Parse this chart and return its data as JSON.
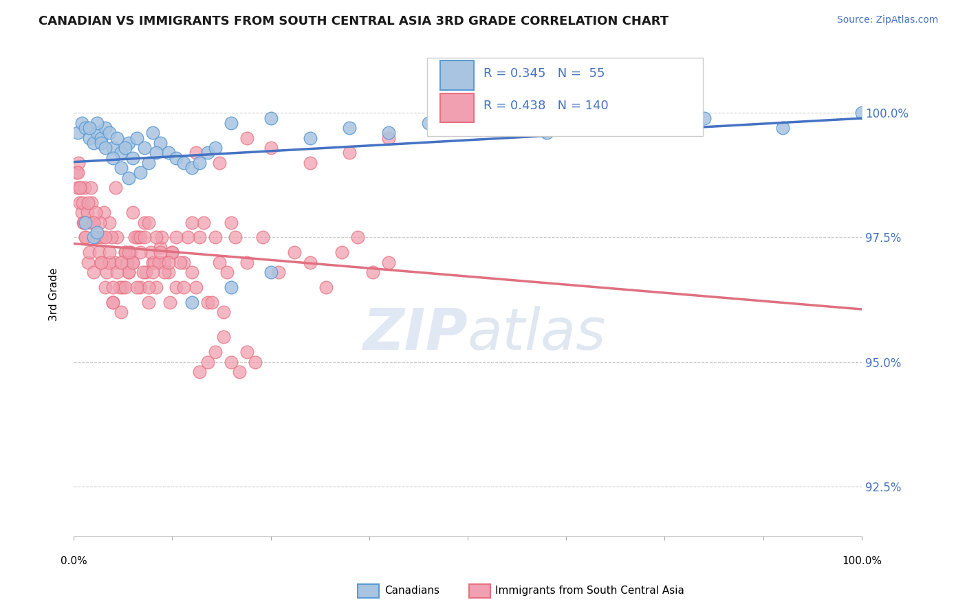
{
  "title": "CANADIAN VS IMMIGRANTS FROM SOUTH CENTRAL ASIA 3RD GRADE CORRELATION CHART",
  "source_text": "Source: ZipAtlas.com",
  "ylabel": "3rd Grade",
  "y_tick_labels": [
    "92.5%",
    "95.0%",
    "97.5%",
    "100.0%"
  ],
  "y_tick_values": [
    92.5,
    95.0,
    97.5,
    100.0
  ],
  "x_range": [
    0,
    100
  ],
  "y_range": [
    91.5,
    101.2
  ],
  "blue_color": "#5b9bd5",
  "pink_color": "#e87080",
  "blue_scatter_color": "#a8c4e0",
  "pink_scatter_color": "#f0a0b0",
  "blue_line_color": "#4472c4",
  "pink_line_color": "#e07080",
  "canadians_x": [
    0.5,
    1.0,
    1.5,
    2.0,
    2.5,
    3.0,
    3.5,
    4.0,
    5.0,
    6.0,
    7.0,
    8.0,
    9.0,
    10.0,
    11.0,
    12.0,
    13.0,
    14.0,
    15.0,
    16.0,
    17.0,
    18.0,
    3.0,
    4.5,
    5.5,
    6.5,
    7.5,
    8.5,
    9.5,
    10.5,
    2.0,
    3.5,
    4.0,
    5.0,
    6.0,
    7.0,
    1.5,
    2.5,
    3.0,
    20.0,
    25.0,
    30.0,
    35.0,
    40.0,
    45.0,
    50.0,
    55.0,
    60.0,
    70.0,
    80.0,
    90.0,
    100.0,
    15.0,
    20.0,
    25.0
  ],
  "canadians_y": [
    99.6,
    99.8,
    99.7,
    99.5,
    99.4,
    99.6,
    99.5,
    99.7,
    99.3,
    99.2,
    99.4,
    99.5,
    99.3,
    99.6,
    99.4,
    99.2,
    99.1,
    99.0,
    98.9,
    99.0,
    99.2,
    99.3,
    99.8,
    99.6,
    99.5,
    99.3,
    99.1,
    98.8,
    99.0,
    99.2,
    99.7,
    99.4,
    99.3,
    99.1,
    98.9,
    98.7,
    97.8,
    97.5,
    97.6,
    99.8,
    99.9,
    99.5,
    99.7,
    99.6,
    99.8,
    99.9,
    99.7,
    99.6,
    99.8,
    99.9,
    99.7,
    100.0,
    96.2,
    96.5,
    96.8
  ],
  "immigrants_x": [
    0.5,
    0.8,
    1.0,
    1.2,
    1.5,
    1.8,
    2.0,
    2.5,
    3.0,
    3.5,
    4.0,
    4.5,
    5.0,
    5.5,
    6.0,
    6.5,
    7.0,
    7.5,
    8.0,
    8.5,
    9.0,
    9.5,
    10.0,
    10.5,
    11.0,
    11.5,
    12.0,
    12.5,
    13.0,
    14.0,
    15.0,
    16.0,
    17.0,
    18.0,
    19.0,
    20.0,
    0.3,
    0.6,
    0.9,
    1.1,
    1.4,
    1.7,
    2.2,
    2.7,
    3.2,
    4.2,
    5.2,
    6.2,
    7.2,
    8.2,
    9.2,
    10.2,
    11.2,
    12.2,
    3.8,
    4.8,
    5.8,
    6.8,
    7.8,
    8.8,
    9.8,
    10.8,
    2.3,
    3.3,
    5.3,
    15.5,
    18.5,
    22.0,
    25.0,
    30.0,
    35.0,
    40.0,
    7.5,
    8.5,
    9.5,
    6.5,
    7.0,
    5.0,
    4.5,
    3.5,
    2.8,
    2.2,
    1.8,
    1.3,
    0.8,
    0.5,
    1.5,
    2.5,
    3.5,
    4.5,
    5.5,
    6.5,
    7.5,
    8.5,
    9.5,
    10.5,
    11.5,
    12.5,
    13.5,
    14.5,
    15.5,
    16.5,
    17.5,
    18.5,
    19.5,
    20.5,
    22.0,
    24.0,
    26.0,
    28.0,
    30.0,
    32.0,
    34.0,
    36.0,
    38.0,
    40.0,
    4.0,
    5.0,
    6.0,
    7.0,
    8.0,
    9.0,
    10.0,
    11.0,
    12.0,
    13.0,
    14.0,
    15.0,
    16.0,
    17.0,
    18.0,
    19.0,
    20.0,
    21.0,
    22.0,
    23.0
  ],
  "immigrants_y": [
    98.5,
    98.2,
    98.0,
    97.8,
    97.5,
    97.0,
    97.2,
    96.8,
    97.5,
    97.0,
    96.5,
    97.8,
    96.2,
    97.5,
    96.0,
    97.2,
    96.8,
    97.0,
    97.5,
    96.5,
    97.8,
    96.2,
    97.0,
    96.5,
    97.3,
    97.0,
    96.8,
    97.2,
    96.5,
    97.0,
    96.8,
    97.5,
    96.2,
    97.5,
    96.0,
    97.8,
    98.8,
    99.0,
    98.5,
    98.2,
    98.5,
    98.0,
    97.8,
    97.5,
    97.2,
    96.8,
    97.0,
    96.5,
    97.2,
    97.5,
    96.8,
    97.0,
    97.5,
    96.2,
    98.0,
    97.5,
    96.5,
    97.0,
    97.5,
    96.8,
    97.2,
    97.0,
    98.2,
    97.8,
    98.5,
    99.2,
    99.0,
    99.5,
    99.3,
    99.0,
    99.2,
    99.5,
    98.0,
    97.5,
    97.8,
    97.2,
    96.8,
    96.5,
    97.0,
    97.5,
    98.0,
    98.5,
    98.2,
    97.8,
    98.5,
    98.8,
    97.5,
    97.8,
    97.0,
    97.2,
    96.8,
    96.5,
    97.0,
    97.2,
    96.5,
    97.5,
    96.8,
    97.2,
    97.0,
    97.5,
    96.5,
    97.8,
    96.2,
    97.0,
    96.8,
    97.5,
    97.0,
    97.5,
    96.8,
    97.2,
    97.0,
    96.5,
    97.2,
    97.5,
    96.8,
    97.0,
    97.5,
    96.2,
    97.0,
    97.2,
    96.5,
    97.5,
    96.8,
    97.2,
    97.0,
    97.5,
    96.5,
    97.8,
    94.8,
    95.0,
    95.2,
    95.5,
    95.0,
    94.8,
    95.2,
    95.0
  ]
}
